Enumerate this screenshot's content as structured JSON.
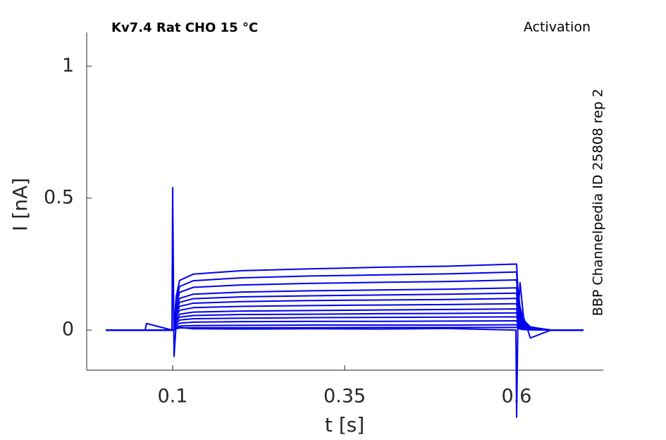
{
  "chart_data": {
    "type": "line",
    "title": "Kv7.4  Rat  CHO  15 °C",
    "subtitle": "Activation",
    "annotation": "BBP Channelpedia ID 25808 rep 2",
    "xlabel": "t [s]",
    "ylabel": "I [nA]",
    "xlim": [
      -0.025,
      0.726
    ],
    "ylim": [
      -0.152,
      1.128
    ],
    "xticks": [
      0.1,
      0.35,
      0.6
    ],
    "yticks": [
      0,
      0.5,
      1
    ],
    "grid": false,
    "x": [
      0.003,
      0.06,
      0.062,
      0.099,
      0.1,
      0.102,
      0.105,
      0.11,
      0.13,
      0.2,
      0.3,
      0.4,
      0.5,
      0.599,
      0.6,
      0.602,
      0.605,
      0.61,
      0.62,
      0.65,
      0.697
    ],
    "series": [
      {
        "color": "#0000ee",
        "values": [
          0,
          0,
          0.025,
          0,
          0.54,
          -0.1,
          0.02,
          0.01,
          0.005,
          0.004,
          0.005,
          0.004,
          0.006,
          0,
          -0.33,
          0.05,
          0.18,
          0.05,
          -0.03,
          0,
          0
        ]
      },
      {
        "color": "#0000ee",
        "values": [
          0,
          0,
          0,
          0,
          0,
          0,
          0.005,
          0.008,
          0.009,
          0.009,
          0.009,
          0.01,
          0.01,
          0.01,
          0.01,
          0.006,
          0.004,
          0.002,
          0.001,
          0,
          0
        ]
      },
      {
        "color": "#0000ee",
        "values": [
          0,
          0,
          0,
          0,
          0,
          0,
          0.01,
          0.015,
          0.017,
          0.018,
          0.019,
          0.019,
          0.019,
          0.02,
          0.02,
          0.012,
          0.007,
          0.003,
          0.001,
          0,
          0
        ]
      },
      {
        "color": "#0000ee",
        "values": [
          0,
          0,
          0,
          0,
          0,
          0,
          0.018,
          0.026,
          0.03,
          0.032,
          0.033,
          0.033,
          0.034,
          0.035,
          0.035,
          0.021,
          0.012,
          0.005,
          0.002,
          0,
          0
        ]
      },
      {
        "color": "#0000ee",
        "values": [
          0,
          0,
          0,
          0,
          0,
          0,
          0.025,
          0.038,
          0.043,
          0.045,
          0.047,
          0.048,
          0.049,
          0.05,
          0.05,
          0.03,
          0.018,
          0.008,
          0.003,
          0,
          0
        ]
      },
      {
        "color": "#0000ee",
        "values": [
          0,
          0,
          0,
          0,
          0,
          0,
          0.033,
          0.049,
          0.055,
          0.059,
          0.06,
          0.062,
          0.063,
          0.065,
          0.065,
          0.039,
          0.023,
          0.01,
          0.003,
          0,
          0
        ]
      },
      {
        "color": "#0000ee",
        "values": [
          0,
          0,
          0,
          0,
          0,
          0,
          0.04,
          0.06,
          0.068,
          0.072,
          0.074,
          0.076,
          0.078,
          0.08,
          0.08,
          0.048,
          0.028,
          0.012,
          0.004,
          0,
          0
        ]
      },
      {
        "color": "#0000ee",
        "values": [
          0,
          0,
          0,
          0,
          0,
          0,
          0.05,
          0.075,
          0.085,
          0.09,
          0.093,
          0.095,
          0.097,
          0.1,
          0.1,
          0.06,
          0.035,
          0.015,
          0.005,
          0,
          0
        ]
      },
      {
        "color": "#0000ee",
        "values": [
          0,
          0,
          0,
          0,
          0,
          0,
          0.06,
          0.09,
          0.102,
          0.108,
          0.112,
          0.114,
          0.116,
          0.12,
          0.12,
          0.072,
          0.042,
          0.018,
          0.006,
          0,
          0
        ]
      },
      {
        "color": "#0000ee",
        "values": [
          0,
          0,
          0,
          0,
          0,
          0,
          0.07,
          0.105,
          0.119,
          0.126,
          0.13,
          0.133,
          0.136,
          0.14,
          0.14,
          0.084,
          0.049,
          0.021,
          0.007,
          0,
          0
        ]
      },
      {
        "color": "#0000ee",
        "values": [
          0,
          0,
          0,
          0,
          0,
          0,
          0.08,
          0.12,
          0.136,
          0.144,
          0.149,
          0.152,
          0.155,
          0.16,
          0.16,
          0.096,
          0.056,
          0.024,
          0.008,
          0,
          0
        ]
      },
      {
        "color": "#0000ee",
        "values": [
          0,
          0,
          0,
          0,
          0,
          0,
          0.095,
          0.143,
          0.162,
          0.171,
          0.177,
          0.181,
          0.184,
          0.19,
          0.19,
          0.114,
          0.067,
          0.029,
          0.01,
          0,
          0
        ]
      },
      {
        "color": "#0000ee",
        "values": [
          0,
          0,
          0,
          0,
          0,
          0,
          0.11,
          0.165,
          0.187,
          0.198,
          0.205,
          0.209,
          0.213,
          0.22,
          0.22,
          0.132,
          0.077,
          0.033,
          0.011,
          0,
          0
        ]
      },
      {
        "color": "#0000ee",
        "values": [
          0,
          0,
          0,
          0,
          0,
          0,
          0.125,
          0.188,
          0.212,
          0.225,
          0.232,
          0.238,
          0.242,
          0.25,
          0.25,
          0.15,
          0.088,
          0.038,
          0.012,
          0,
          0
        ]
      }
    ]
  }
}
